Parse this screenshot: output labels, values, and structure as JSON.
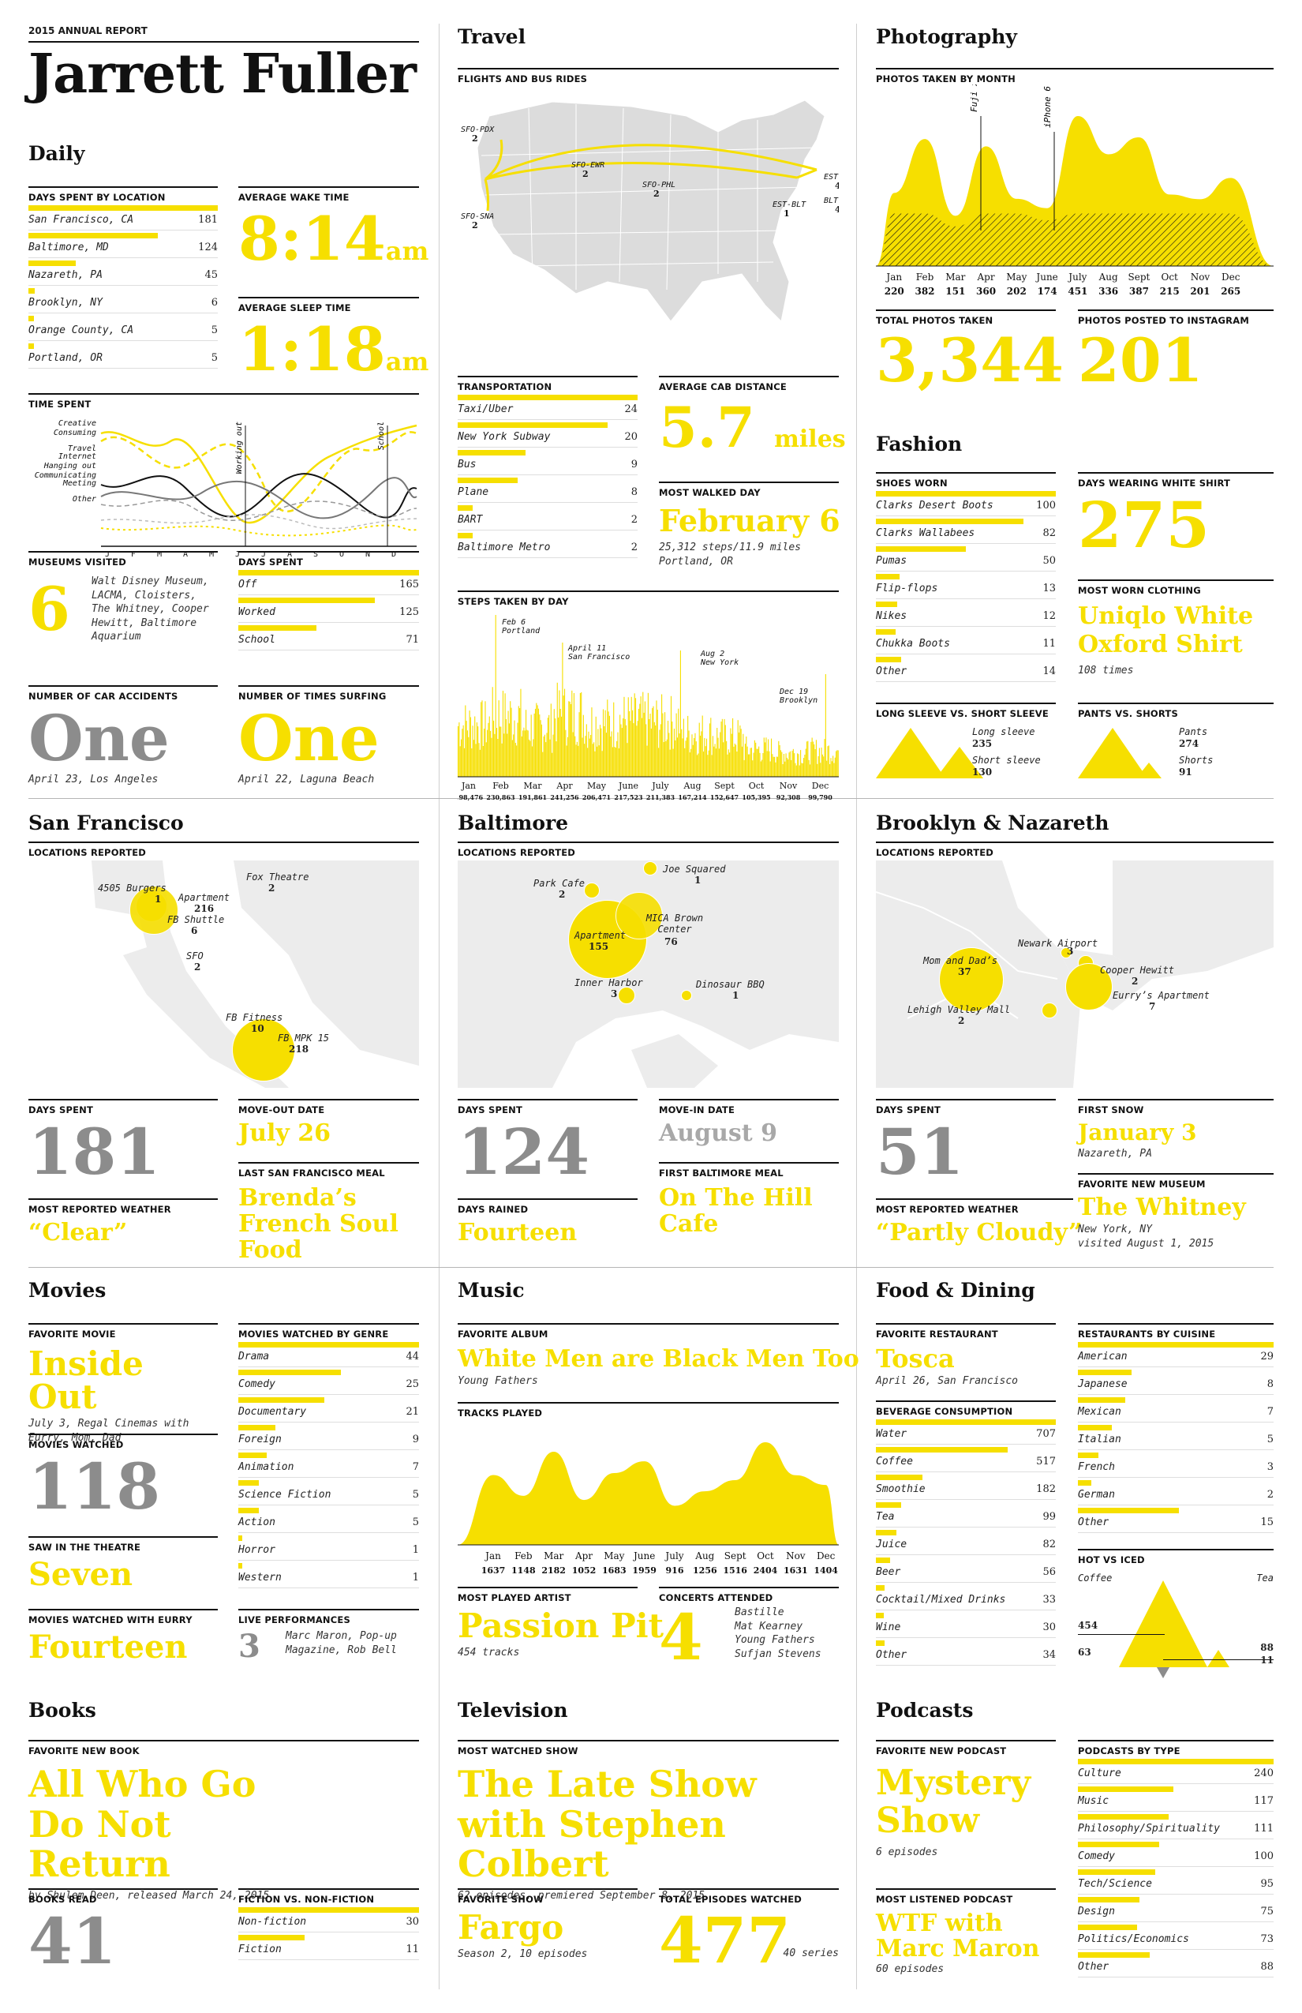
{
  "header": {
    "kicker": "2015 ANNUAL REPORT",
    "name": "Jarrett Fuller"
  },
  "daily": {
    "title": "Daily",
    "days_label": "DAYS SPENT BY LOCATION",
    "days": [
      {
        "name": "San Francisco, CA",
        "value": 181
      },
      {
        "name": "Baltimore, MD",
        "value": 124
      },
      {
        "name": "Nazareth, PA",
        "value": 45
      },
      {
        "name": "Brooklyn, NY",
        "value": 6
      },
      {
        "name": "Orange County, CA",
        "value": 5
      },
      {
        "name": "Portland, OR",
        "value": 5
      }
    ],
    "wake_label": "AVERAGE WAKE TIME",
    "wake": "8:14",
    "wake_ampm": "am",
    "sleep_label": "AVERAGE SLEEP TIME",
    "sleep": "1:18",
    "sleep_ampm": "am",
    "time_label": "TIME SPENT",
    "time_legend": [
      "Creative",
      "Consuming",
      "Travel",
      "Internet",
      "Hanging out",
      "Communicating",
      "Meeting",
      "Other"
    ],
    "time_months": [
      "J",
      "F",
      "M",
      "A",
      "M",
      "J",
      "J",
      "A",
      "S",
      "O",
      "N",
      "D"
    ],
    "time_ann": [
      "Working out",
      "School"
    ],
    "museums_label": "MUSEUMS VISITED",
    "museums": "6",
    "museums_note": "Walt Disney Museum, LACMA, Cloisters, The Whitney, Cooper Hewitt, Baltimore Aquarium",
    "daysspent_label": "DAYS SPENT",
    "daysspent": [
      {
        "name": "Off",
        "value": 165
      },
      {
        "name": "Worked",
        "value": 125
      },
      {
        "name": "School",
        "value": 71
      }
    ],
    "accidents_label": "NUMBER OF CAR ACCIDENTS",
    "accidents": "One",
    "accidents_note": "April 23, Los Angeles",
    "surfing_label": "NUMBER OF TIMES SURFING",
    "surfing": "One",
    "surfing_note": "April 22, Laguna Beach"
  },
  "travel": {
    "title": "Travel",
    "flights_label": "FLIGHTS AND BUS RIDES",
    "routes": [
      {
        "name": "SFO-PDX",
        "value": "2"
      },
      {
        "name": "SFO-EWR",
        "value": "2"
      },
      {
        "name": "SFO-PHL",
        "value": "2"
      },
      {
        "name": "SFO-SNA",
        "value": "2"
      },
      {
        "name": "EST-NYC",
        "value": "4"
      },
      {
        "name": "BLT-NYC",
        "value": "4"
      },
      {
        "name": "EST-BLT",
        "value": "1"
      }
    ],
    "transport_label": "TRANSPORTATION",
    "transport": [
      {
        "name": "Taxi/Uber",
        "value": 24
      },
      {
        "name": "New York Subway",
        "value": 20
      },
      {
        "name": "Bus",
        "value": 9
      },
      {
        "name": "Plane",
        "value": 8
      },
      {
        "name": "BART",
        "value": 2
      },
      {
        "name": "Baltimore Metro",
        "value": 2
      }
    ],
    "cab_label": "AVERAGE CAB DISTANCE",
    "cab": "5.7",
    "cab_unit": "miles",
    "walked_label": "MOST WALKED DAY",
    "walked": "February 6",
    "walked_note": "25,312 steps/11.9 miles",
    "walked_note2": "Portland, OR",
    "steps_label": "STEPS TAKEN BY DAY",
    "steps_ann": [
      {
        "t": "Feb 6",
        "t2": "Portland"
      },
      {
        "t": "April 11",
        "t2": "San Francisco"
      },
      {
        "t": "Aug 2",
        "t2": "New York"
      },
      {
        "t": "Dec 19",
        "t2": "Brooklyn"
      }
    ]
  },
  "photo": {
    "title": "Photography",
    "month_label": "PHOTOS TAKEN BY MONTH",
    "ann": [
      "Fuji x100",
      "iPhone 6"
    ],
    "total_label": "TOTAL PHOTOS TAKEN",
    "total": "3,344",
    "insta_label": "PHOTOS POSTED TO INSTAGRAM",
    "insta": "201"
  },
  "fashion": {
    "title": "Fashion",
    "shoes_label": "SHOES WORN",
    "shoes": [
      {
        "name": "Clarks Desert Boots",
        "value": 100
      },
      {
        "name": "Clarks Wallabees",
        "value": 82
      },
      {
        "name": "Pumas",
        "value": 50
      },
      {
        "name": "Flip-flops",
        "value": 13
      },
      {
        "name": "Nikes",
        "value": 12
      },
      {
        "name": "Chukka Boots",
        "value": 11
      },
      {
        "name": "Other",
        "value": 14
      }
    ],
    "white_label": "DAYS WEARING WHITE SHIRT",
    "white": "275",
    "worn_label": "MOST WORN CLOTHING",
    "worn": "Uniqlo White Oxford Shirt",
    "worn_note": "108 times",
    "sleeve_label": "LONG SLEEVE VS. SHORT SLEEVE",
    "long_label": "Long sleeve",
    "long": "235",
    "short_label": "Short sleeve",
    "short": "130",
    "pants_label": "PANTS VS. SHORTS",
    "pants_name": "Pants",
    "pants": "274",
    "shorts_name": "Shorts",
    "shorts": "91"
  },
  "sf": {
    "title": "San Francisco",
    "loc_label": "LOCATIONS REPORTED",
    "locs": [
      {
        "name": "4505 Burgers",
        "value": "1"
      },
      {
        "name": "Apartment",
        "value": "216"
      },
      {
        "name": "FB Shuttle",
        "value": "6"
      },
      {
        "name": "Fox Theatre",
        "value": "2"
      },
      {
        "name": "SFO",
        "value": "2"
      },
      {
        "name": "FB Fitness",
        "value": "10"
      },
      {
        "name": "FB MPK 15",
        "value": "218"
      }
    ],
    "days_label": "DAYS SPENT",
    "days": "181",
    "moveout_label": "MOVE-OUT DATE",
    "moveout": "July 26",
    "weather_label": "MOST REPORTED WEATHER",
    "weather": "“Clear”",
    "meal_label": "LAST SAN FRANCISCO MEAL",
    "meal": "Brenda’s French Soul Food"
  },
  "bal": {
    "title": "Baltimore",
    "loc_label": "LOCATIONS REPORTED",
    "locs": [
      {
        "name": "Joe Squared",
        "value": "1"
      },
      {
        "name": "Park Cafe",
        "value": "2"
      },
      {
        "name": "MICA Brown Center",
        "value": "76"
      },
      {
        "name": "Apartment",
        "value": "155"
      },
      {
        "name": "Inner Harbor",
        "value": "3"
      },
      {
        "name": "Dinosaur BBQ",
        "value": "1"
      }
    ],
    "days_label": "DAYS SPENT",
    "days": "124",
    "movein_label": "MOVE-IN DATE",
    "movein": "August 9",
    "rained_label": "DAYS RAINED",
    "rained": "Fourteen",
    "meal_label": "FIRST BALTIMORE MEAL",
    "meal": "On The Hill Cafe"
  },
  "bk": {
    "title": "Brooklyn & Nazareth",
    "loc_label": "LOCATIONS REPORTED",
    "locs": [
      {
        "name": "Newark Airport",
        "value": "3"
      },
      {
        "name": "Mom and Dad’s",
        "value": "37"
      },
      {
        "name": "Cooper Hewitt",
        "value": "2"
      },
      {
        "name": "Eurry’s Apartment",
        "value": "7"
      },
      {
        "name": "Lehigh Valley Mall",
        "value": "2"
      }
    ],
    "days_label": "DAYS SPENT",
    "days": "51",
    "snow_label": "FIRST SNOW",
    "snow": "January 3",
    "snow_note": "Nazareth, PA",
    "weather_label": "MOST REPORTED WEATHER",
    "weather": "“Partly Cloudy”",
    "museum_label": "FAVORITE NEW MUSEUM",
    "museum": "The Whitney",
    "museum_note": "New York, NY",
    "museum_note2": "visited August 1, 2015"
  },
  "movies": {
    "title": "Movies",
    "fav_label": "FAVORITE MOVIE",
    "fav": "Inside Out",
    "fav_note": "July 3, Regal Cinemas with Eurry, Mom, Dad",
    "watched_label": "MOVIES WATCHED",
    "watched": "118",
    "theatre_label": "SAW IN THE THEATRE",
    "theatre": "Seven",
    "eurry_label": "MOVIES WATCHED WITH EURRY",
    "eurry": "Fourteen",
    "genre_label": "MOVIES WATCHED BY GENRE",
    "genres": [
      {
        "name": "Drama",
        "value": 44
      },
      {
        "name": "Comedy",
        "value": 25
      },
      {
        "name": "Documentary",
        "value": 21
      },
      {
        "name": "Foreign",
        "value": 9
      },
      {
        "name": "Animation",
        "value": 7
      },
      {
        "name": "Science Fiction",
        "value": 5
      },
      {
        "name": "Action",
        "value": 5
      },
      {
        "name": "Horror",
        "value": 1
      },
      {
        "name": "Western",
        "value": 1
      }
    ],
    "live_label": "LIVE PERFORMANCES",
    "live": "3",
    "live_note": "Marc Maron, Pop-up Magazine, Rob Bell"
  },
  "music": {
    "title": "Music",
    "album_label": "FAVORITE ALBUM",
    "album": "White Men are Black Men Too",
    "album_note": "Young Fathers",
    "tracks_label": "TRACKS PLAYED",
    "artist_label": "MOST PLAYED ARTIST",
    "artist": "Passion Pit",
    "artist_note": "454 tracks",
    "concerts_label": "CONCERTS ATTENDED",
    "concerts": "4",
    "concerts_note": [
      "Bastille",
      "Mat Kearney",
      "Young Fathers",
      "Sufjan Stevens"
    ]
  },
  "food": {
    "title": "Food & Dining",
    "rest_label": "FAVORITE RESTAURANT",
    "rest": "Tosca",
    "rest_note": "April 26, San Francisco",
    "bev_label": "BEVERAGE CONSUMPTION",
    "bev": [
      {
        "name": "Water",
        "value": 707
      },
      {
        "name": "Coffee",
        "value": 517
      },
      {
        "name": "Smoothie",
        "value": 182
      },
      {
        "name": "Tea",
        "value": 99
      },
      {
        "name": "Juice",
        "value": 82
      },
      {
        "name": "Beer",
        "value": 56
      },
      {
        "name": "Cocktail/Mixed Drinks",
        "value": 33
      },
      {
        "name": "Wine",
        "value": 30
      },
      {
        "name": "Other",
        "value": 34
      }
    ],
    "cuisine_label": "RESTAURANTS BY CUISINE",
    "cuisine": [
      {
        "name": "American",
        "value": 29
      },
      {
        "name": "Japanese",
        "value": 8
      },
      {
        "name": "Mexican",
        "value": 7
      },
      {
        "name": "Italian",
        "value": 5
      },
      {
        "name": "French",
        "value": 3
      },
      {
        "name": "German",
        "value": 2
      },
      {
        "name": "Other",
        "value": 15
      }
    ],
    "hot_label": "HOT VS ICED",
    "coffee": "Coffee",
    "tea": "Tea",
    "v454": "454",
    "v63": "63",
    "v88": "88",
    "v11": "11"
  },
  "books": {
    "title": "Books",
    "fav_label": "FAVORITE NEW BOOK",
    "fav": "All Who Go Do Not Return",
    "fav_note": "by Shulem Deen, released March 24, 2015",
    "read_label": "BOOKS READ",
    "read": "41",
    "fic_label": "FICTION VS. NON-FICTION",
    "fic": [
      {
        "name": "Non-fiction",
        "value": 30
      },
      {
        "name": "Fiction",
        "value": 11
      }
    ]
  },
  "tv": {
    "title": "Television",
    "most_label": "MOST WATCHED SHOW",
    "most": "The Late Show with Stephen Colbert",
    "most_note": "62 episodes, premiered September 8, 2015",
    "fav_label": "FAVORITE SHOW",
    "fav": "Fargo",
    "fav_note": "Season 2, 10 episodes",
    "eps_label": "TOTAL EPISODES WATCHED",
    "eps": "477",
    "eps_note": "40 series"
  },
  "pod": {
    "title": "Podcasts",
    "fav_label": "FAVORITE NEW PODCAST",
    "fav": "Mystery Show",
    "fav_note": "6 episodes",
    "most_label": "MOST LISTENED PODCAST",
    "most": "WTF with Marc Maron",
    "most_note": "60 episodes",
    "type_label": "PODCASTS BY TYPE",
    "types": [
      {
        "name": "Culture",
        "value": 240
      },
      {
        "name": "Music",
        "value": 117
      },
      {
        "name": "Philosophy/Spirituality",
        "value": 111
      },
      {
        "name": "Comedy",
        "value": 100
      },
      {
        "name": "Tech/Science",
        "value": 95
      },
      {
        "name": "Design",
        "value": 75
      },
      {
        "name": "Politics/Economics",
        "value": 73
      },
      {
        "name": "Other",
        "value": 88
      }
    ]
  },
  "chart_data": [
    {
      "type": "area",
      "title": "PHOTOS TAKEN BY MONTH",
      "categories": [
        "Jan",
        "Feb",
        "Mar",
        "Apr",
        "May",
        "June",
        "July",
        "Aug",
        "Sept",
        "Oct",
        "Nov",
        "Dec"
      ],
      "values": [
        220,
        382,
        151,
        360,
        202,
        174,
        451,
        336,
        387,
        215,
        201,
        265
      ]
    },
    {
      "type": "area",
      "title": "TRACKS PLAYED",
      "categories": [
        "Jan",
        "Feb",
        "Mar",
        "Apr",
        "May",
        "June",
        "July",
        "Aug",
        "Sept",
        "Oct",
        "Nov",
        "Dec"
      ],
      "values": [
        1637,
        1148,
        2182,
        1052,
        1683,
        1959,
        916,
        1256,
        1516,
        2404,
        1631,
        1404
      ]
    },
    {
      "type": "bar",
      "title": "STEPS TAKEN BY DAY",
      "categories": [
        "Jan",
        "Feb",
        "Mar",
        "Apr",
        "May",
        "June",
        "July",
        "Aug",
        "Sept",
        "Oct",
        "Nov",
        "Dec"
      ],
      "values": [
        198476,
        230863,
        191861,
        241256,
        206471,
        217523,
        211383,
        167214,
        152647,
        105395,
        92308,
        99790
      ]
    }
  ]
}
